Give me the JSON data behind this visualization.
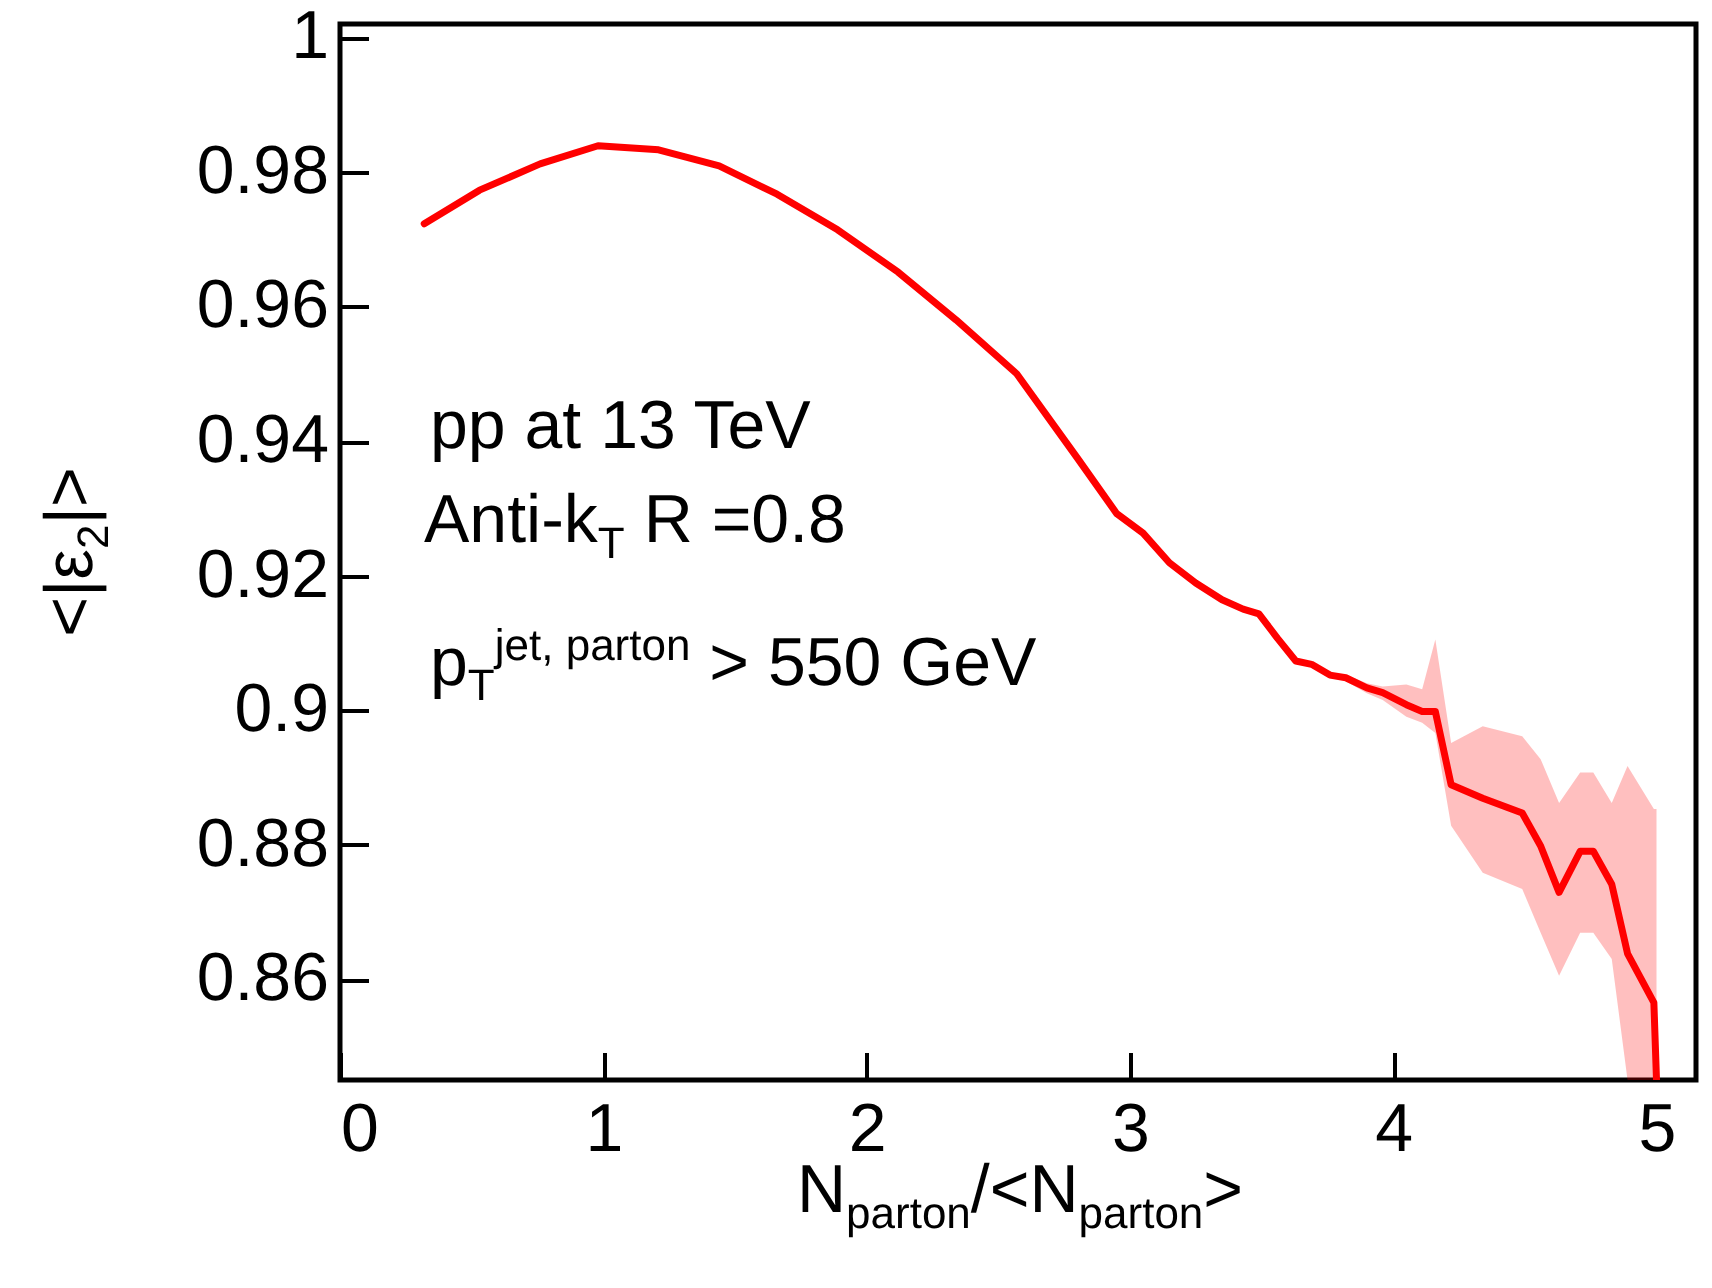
{
  "chart_data": {
    "type": "line",
    "xlabel": "N$_{parton}$/<N$_{parton}$>",
    "ylabel": "<|ε$_{2}$|>",
    "annotations": [
      "pp at 13 TeV",
      "Anti-k$_{T}$ R =0.8",
      "p$_{T}$$^{jet, parton}$ > 550 GeV"
    ],
    "xlim": [
      0,
      5.15
    ],
    "ylim": [
      0.845,
      1.002
    ],
    "xticks": [
      0,
      1,
      2,
      3,
      4,
      5
    ],
    "yticks": [
      0.86,
      0.88,
      0.9,
      0.92,
      0.94,
      0.96,
      0.98,
      1
    ],
    "series": [
      {
        "color": "#ff0000",
        "x": [
          0.32,
          0.53,
          0.76,
          0.98,
          1.21,
          1.44,
          1.66,
          1.89,
          2.12,
          2.34,
          2.57,
          2.8,
          2.95,
          3.05,
          3.15,
          3.25,
          3.35,
          3.43,
          3.49,
          3.56,
          3.63,
          3.69,
          3.76,
          3.82,
          3.9,
          3.96,
          4.05,
          4.11,
          4.16,
          4.22,
          4.34,
          4.49,
          4.56,
          4.63,
          4.71,
          4.76,
          4.83,
          4.89,
          4.99,
          5.0
        ],
        "values": [
          0.9723,
          0.9773,
          0.9812,
          0.9839,
          0.9833,
          0.9809,
          0.9767,
          0.9714,
          0.9651,
          0.958,
          0.95,
          0.9375,
          0.9292,
          0.9263,
          0.9219,
          0.9189,
          0.9164,
          0.915,
          0.9143,
          0.9107,
          0.9073,
          0.9068,
          0.9052,
          0.9048,
          0.9033,
          0.9026,
          0.9008,
          0.8998,
          0.8998,
          0.8889,
          0.8869,
          0.8847,
          0.8798,
          0.8729,
          0.879,
          0.879,
          0.8741,
          0.8638,
          0.8565,
          0.845
        ],
        "lower": [
          null,
          null,
          null,
          null,
          null,
          null,
          null,
          null,
          null,
          null,
          null,
          null,
          null,
          null,
          null,
          null,
          null,
          null,
          null,
          null,
          null,
          null,
          null,
          0.9043,
          0.9025,
          0.9015,
          0.899,
          0.8981,
          0.8966,
          0.8828,
          0.8758,
          0.8734,
          0.8669,
          0.8605,
          0.8669,
          0.8669,
          0.863,
          0.845,
          0.845,
          0.845
        ],
        "upper": [
          null,
          null,
          null,
          null,
          null,
          null,
          null,
          null,
          null,
          null,
          null,
          null,
          null,
          null,
          null,
          null,
          null,
          null,
          null,
          null,
          null,
          null,
          null,
          0.9053,
          0.904,
          0.9035,
          0.9038,
          0.9031,
          0.9105,
          0.8951,
          0.8976,
          0.8961,
          0.8927,
          0.8862,
          0.8907,
          0.8907,
          0.8862,
          0.8917,
          0.8853,
          0.8853
        ]
      }
    ]
  }
}
